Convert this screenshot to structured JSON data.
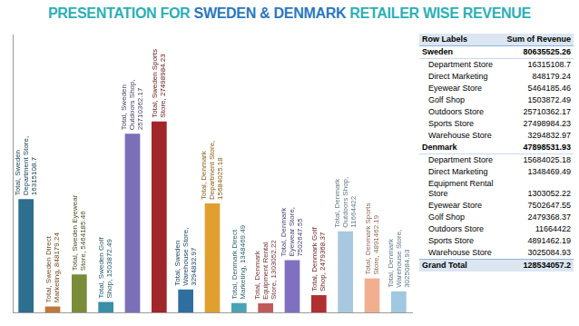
{
  "header": {
    "title_parts": [
      "PRESENTATION FOR",
      "SWEDEN & DENMARK",
      "RETAILER WISE REVENUE"
    ]
  },
  "chart_data": {
    "type": "bar",
    "categories": [
      "Total, Sweden Department Store",
      "Total, Sweden Direct Marketing",
      "Total, Sweden Eyewear Store",
      "Total, Sweden Golf Shop",
      "Total, Sweden Outdoors Shop",
      "Total, Sweden Sports Store",
      "Total, Sweden Warehouse Store",
      "Total, Denmark Department Store",
      "Total, Denmark Direct Marketing",
      "Total, Denmark Equipment Rental Store",
      "Total, Denmark Eyewear Store",
      "Total, Denmark Golf Shop",
      "Total, Denmark Outdoors Shop",
      "Total, Denmark Sports Store",
      "Total, Denmark Warehouse Store"
    ],
    "values": [
      16315108.7,
      848179.24,
      5464185.46,
      1503872.49,
      25710362.17,
      27498984.23,
      3294832.97,
      15684025.18,
      1348469.49,
      1303052.22,
      7502647.55,
      2479368.37,
      11664422,
      4891462.19,
      3025084.93
    ],
    "value_labels": [
      "Total, Sweden Department Store, 16315108.7",
      "Total, Sweden Direct Marketing, 848179.24",
      "Total, Sweden Eyewear Store, 5464185.46",
      "Total, Sweden Golf Shop, 1503872.49",
      "Total, Sweden Outdoors Shop, 25710362.17",
      "Total, Sweden Sports Store, 27498984.23",
      "Total, Sweden Warehouse Store, 3294832.97",
      "Total, Denmark Department Store, 15684025.18",
      "Total, Denmark Direct Marketing, 1348469.49",
      "Total, Denmark Equipment Rental Store, 1303052.22",
      "Total, Denmark Eyewear Store, 7502647.55",
      "Total, Denmark Golf Shop, 2479368.37",
      "Total, Denmark Outdoors Shop, 11664422",
      "Total, Denmark Sports Store, 4891462.19",
      "Total, Denmark Warehouse Store, 3025084.93"
    ],
    "colors": [
      "#2e6e8e",
      "#c0783a",
      "#7a8c3a",
      "#3a8fa8",
      "#7b6fb8",
      "#a0262a",
      "#2e6fa0",
      "#e0a030",
      "#4aa3b5",
      "#c05a5a",
      "#8070c0",
      "#b03030",
      "#a8c8e0",
      "#f0b090",
      "#a0c8e0"
    ],
    "ylim": [
      0,
      40000000
    ],
    "grid": false,
    "tick_labels": false,
    "data_labels": true
  },
  "table": {
    "header": [
      "Row Labels",
      "Sum of Revenue"
    ],
    "groups": [
      {
        "label": "Sweden",
        "total": 80635525.26,
        "rows": [
          [
            "Department Store",
            16315108.7
          ],
          [
            "Direct Marketing",
            848179.24
          ],
          [
            "Eyewear Store",
            5464185.46
          ],
          [
            "Golf Shop",
            1503872.49
          ],
          [
            "Outdoors Store",
            25710362.17
          ],
          [
            "Sports Store",
            27498984.23
          ],
          [
            "Warehouse Store",
            3294832.97
          ]
        ]
      },
      {
        "label": "Denmark",
        "total": 47898531.93,
        "rows": [
          [
            "Department Store",
            15684025.18
          ],
          [
            "Direct Marketing",
            1348469.49
          ],
          [
            "Equipment Rental Store",
            1303052.22
          ],
          [
            "Eyewear Store",
            7502647.55
          ],
          [
            "Golf Shop",
            2479368.37
          ],
          [
            "Outdoors Store",
            11664422
          ],
          [
            "Sports Store",
            4891462.19
          ],
          [
            "Warehouse Store",
            3025084.93
          ]
        ]
      }
    ],
    "grand_total": {
      "label": "Grand Total",
      "value": 128534057.2
    }
  }
}
